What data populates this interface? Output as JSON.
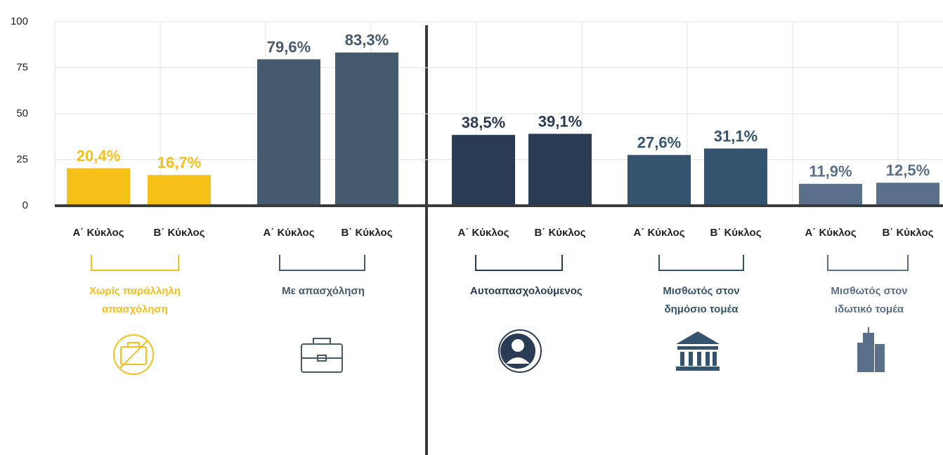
{
  "chart_data": {
    "type": "bar",
    "categories": [
      "Α΄ Κύκλος",
      "Β΄ Κύκλος",
      "Α΄ Κύκλος",
      "Β΄ Κύκλος",
      "Α΄ Κύκλος",
      "Β΄ Κύκλος",
      "Α΄ Κύκλος",
      "Β΄ Κύκλος",
      "Α΄ Κύκλος",
      "Β΄ Κύκλος"
    ],
    "values": [
      20.4,
      16.7,
      79.6,
      83.3,
      38.5,
      39.1,
      27.6,
      31.1,
      11.9,
      12.5
    ],
    "value_labels": [
      "20,4%",
      "16,7%",
      "79,6%",
      "83,3%",
      "38,5%",
      "39,1%",
      "27,6%",
      "31,1%",
      "11,9%",
      "12,5%"
    ],
    "groups": [
      {
        "name": "Χωρίς παράλληλη απασχόληση",
        "color": "#f5c018"
      },
      {
        "name": "Με απασχόληση",
        "color": "#465a6e"
      },
      {
        "name": "Αυτοαπασχολούμενος",
        "color": "#2a3b55"
      },
      {
        "name": "Μισθωτός στον δημόσιο τομέα",
        "color": "#34536e"
      },
      {
        "name": "Μισθωτός στον ιδωτικό τομέα",
        "color": "#5a6f89"
      }
    ],
    "ylim": [
      0,
      100
    ],
    "yticks": [
      0,
      25,
      50,
      75,
      100
    ],
    "grid": true
  }
}
